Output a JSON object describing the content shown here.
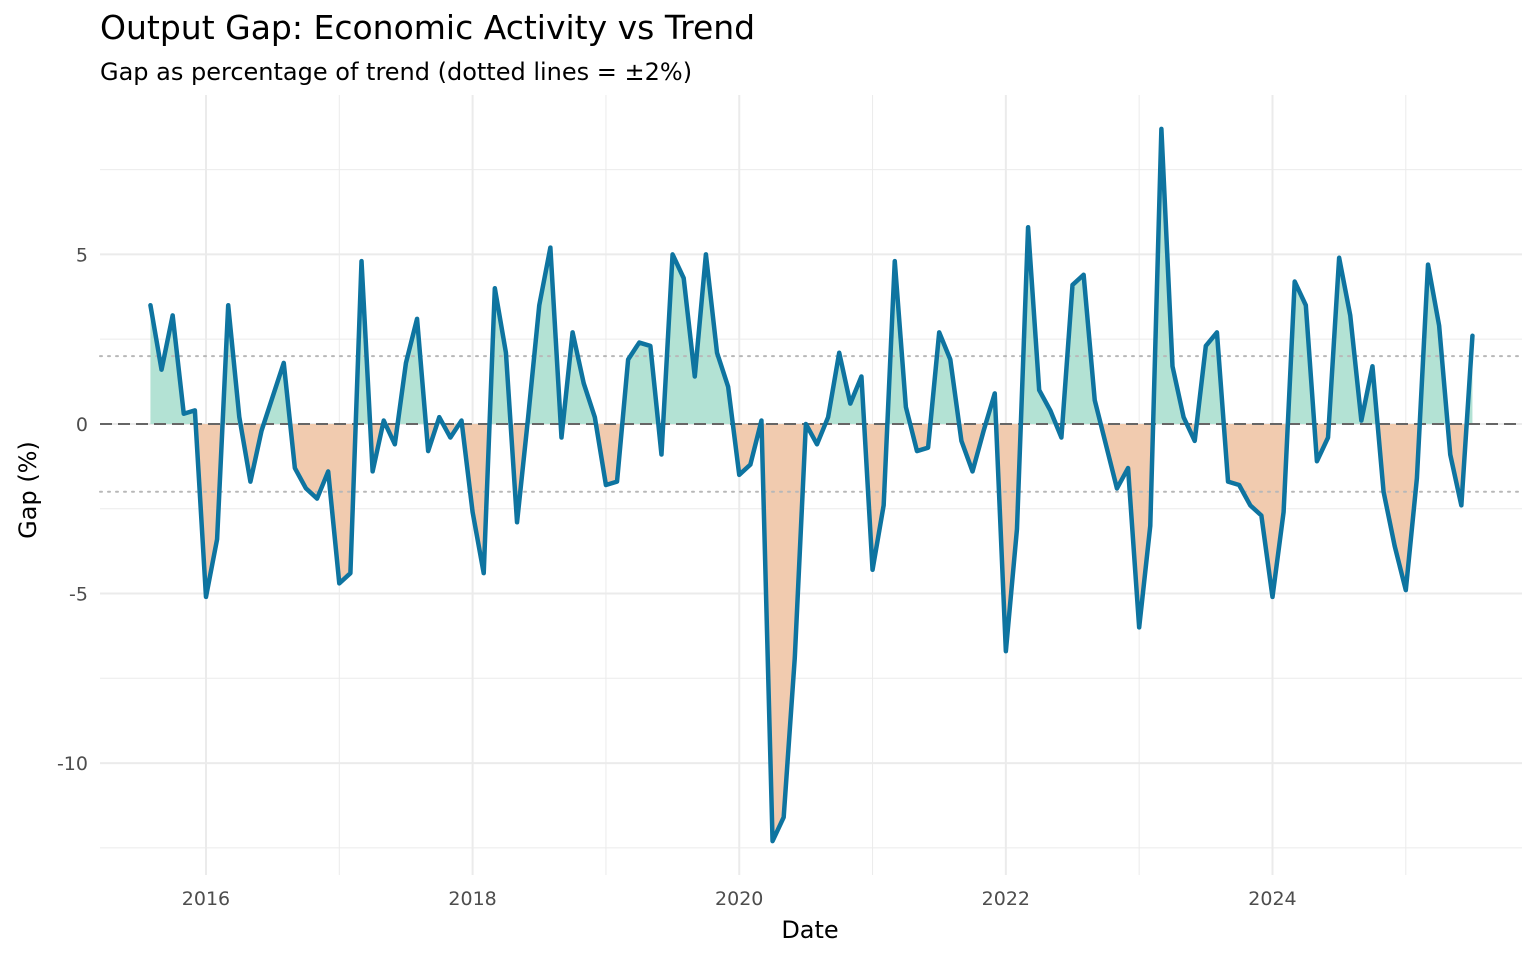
{
  "chart_data": {
    "type": "area",
    "title": "Output Gap: Economic Activity vs Trend",
    "subtitle": "Gap as percentage of trend (dotted lines = ±2%)",
    "xlabel": "Date",
    "ylabel": "Gap (%)",
    "xlim": [
      "2015-03-15",
      "2025-11-15"
    ],
    "ylim": [
      -13.3,
      9.7
    ],
    "x_ticks": [
      "2016",
      "2018",
      "2020",
      "2022",
      "2024"
    ],
    "y_ticks": [
      "-10",
      "-5",
      "0",
      "5"
    ],
    "reference_lines": [
      {
        "value": 0,
        "style": "dashed"
      },
      {
        "value": 2,
        "style": "dotted"
      },
      {
        "value": -2,
        "style": "dotted"
      }
    ],
    "colors": {
      "line": "#0e74a0",
      "positive_fill": "#b3e2d4",
      "negative_fill": "#f1cbaf",
      "zero_line": "#666666",
      "band_lines": "#b8b8b8",
      "grid": "#ebebeb"
    },
    "grid": true,
    "legend": "none",
    "series": [
      {
        "x": [
          "2015-08",
          "2015-09",
          "2015-10",
          "2015-11",
          "2015-12",
          "2016-01",
          "2016-02",
          "2016-03",
          "2016-04",
          "2016-05",
          "2016-06",
          "2016-07",
          "2016-08",
          "2016-09",
          "2016-10",
          "2016-11",
          "2016-12",
          "2017-01",
          "2017-02",
          "2017-03",
          "2017-04",
          "2017-05",
          "2017-06",
          "2017-07",
          "2017-08",
          "2017-09",
          "2017-10",
          "2017-11",
          "2017-12",
          "2018-01",
          "2018-02",
          "2018-03",
          "2018-04",
          "2018-05",
          "2018-06",
          "2018-07",
          "2018-08",
          "2018-09",
          "2018-10",
          "2018-11",
          "2018-12",
          "2019-01",
          "2019-02",
          "2019-03",
          "2019-04",
          "2019-05",
          "2019-06",
          "2019-07",
          "2019-08",
          "2019-09",
          "2019-10",
          "2019-11",
          "2019-12",
          "2020-01",
          "2020-02",
          "2020-03",
          "2020-04",
          "2020-05",
          "2020-06",
          "2020-07",
          "2020-08",
          "2020-09",
          "2020-10",
          "2020-11",
          "2020-12",
          "2021-01",
          "2021-02",
          "2021-03",
          "2021-04",
          "2021-05",
          "2021-06",
          "2021-07",
          "2021-08",
          "2021-09",
          "2021-10",
          "2021-11",
          "2021-12",
          "2022-01",
          "2022-02",
          "2022-03",
          "2022-04",
          "2022-05",
          "2022-06",
          "2022-07",
          "2022-08",
          "2022-09",
          "2022-10",
          "2022-11",
          "2022-12",
          "2023-01",
          "2023-02",
          "2023-03",
          "2023-04",
          "2023-05",
          "2023-06",
          "2023-07",
          "2023-08",
          "2023-09",
          "2023-10",
          "2023-11",
          "2023-12",
          "2024-01",
          "2024-02",
          "2024-03",
          "2024-04",
          "2024-05",
          "2024-06",
          "2024-07",
          "2024-08",
          "2024-09",
          "2024-10",
          "2024-11",
          "2024-12",
          "2025-01",
          "2025-02",
          "2025-03",
          "2025-04",
          "2025-05",
          "2025-06",
          "2025-07"
        ],
        "values": [
          3.5,
          1.6,
          3.2,
          0.3,
          0.4,
          -5.1,
          -3.4,
          3.5,
          0.2,
          -1.7,
          -0.2,
          0.8,
          1.8,
          -1.3,
          -1.9,
          -2.2,
          -1.4,
          -4.7,
          -4.4,
          4.8,
          -1.4,
          0.1,
          -0.6,
          1.8,
          3.1,
          -0.8,
          0.2,
          -0.4,
          0.1,
          -2.6,
          -4.4,
          4.0,
          2.1,
          -2.9,
          0.2,
          3.5,
          5.2,
          -0.4,
          2.7,
          1.2,
          0.2,
          -1.8,
          -1.7,
          1.9,
          2.4,
          2.3,
          -0.9,
          5.0,
          4.3,
          1.4,
          5.0,
          2.1,
          1.1,
          -1.5,
          -1.2,
          0.1,
          -12.3,
          -11.6,
          -6.9,
          0.0,
          -0.6,
          0.2,
          2.1,
          0.6,
          1.4,
          -4.3,
          -2.4,
          4.8,
          0.5,
          -0.8,
          -0.7,
          2.7,
          1.9,
          -0.5,
          -1.4,
          -0.2,
          0.9,
          -6.7,
          -3.1,
          5.8,
          1.0,
          0.4,
          -0.4,
          4.1,
          4.4,
          0.7,
          -0.6,
          -1.9,
          -1.3,
          -6.0,
          -3.0,
          8.7,
          1.7,
          0.2,
          -0.5,
          2.3,
          2.7,
          -1.7,
          -1.8,
          -2.4,
          -2.7,
          -5.1,
          -2.6,
          4.2,
          3.5,
          -1.1,
          -0.4,
          4.9,
          3.2,
          0.1,
          1.7,
          -2.0,
          -3.6,
          -4.9,
          -1.6,
          4.7,
          2.9,
          -0.9,
          -2.4,
          2.6
        ]
      }
    ]
  }
}
